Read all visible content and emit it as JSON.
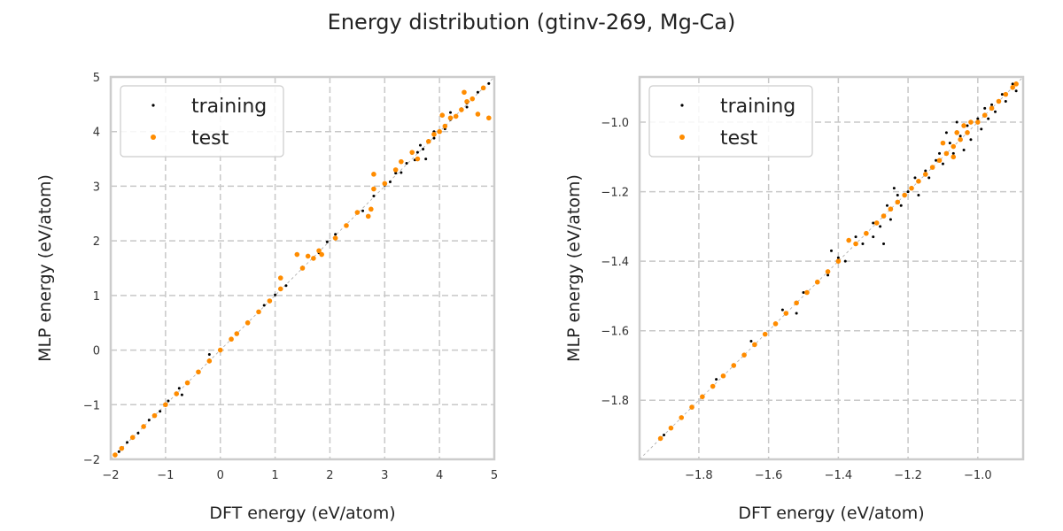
{
  "figure_title": "Energy distribution (gtinv-269, Mg-Ca)",
  "colors": {
    "training": "#000000",
    "test": "#ff8c00",
    "grid": "#c8c8c8",
    "frame": "#cccccc",
    "diagonal": "#aaaaaa"
  },
  "chart_data": [
    {
      "type": "scatter",
      "title": "",
      "xlabel": "DFT energy (eV/atom)",
      "ylabel": "MLP energy (eV/atom)",
      "xlim": [
        -2.0,
        5.0
      ],
      "ylim": [
        -2.0,
        5.0
      ],
      "xticks": [
        -2,
        -1,
        0,
        1,
        2,
        3,
        4,
        5
      ],
      "yticks": [
        -2,
        -1,
        0,
        1,
        2,
        3,
        4,
        5
      ],
      "xtick_labels": [
        "−2",
        "−1",
        "0",
        "1",
        "2",
        "3",
        "4",
        "5"
      ],
      "ytick_labels": [
        "−2",
        "−1",
        "0",
        "1",
        "2",
        "3",
        "4",
        "5"
      ],
      "grid": true,
      "legend": {
        "position": "top-left",
        "entries": [
          "training",
          "test"
        ]
      },
      "series": [
        {
          "name": "training",
          "color": "#000000",
          "points": [
            [
              -1.92,
              -1.91
            ],
            [
              -1.85,
              -1.86
            ],
            [
              -1.7,
              -1.69
            ],
            [
              -1.5,
              -1.52
            ],
            [
              -1.3,
              -1.28
            ],
            [
              -1.1,
              -1.12
            ],
            [
              -0.95,
              -0.93
            ],
            [
              -0.8,
              -0.82
            ],
            [
              -0.75,
              -0.7
            ],
            [
              -0.7,
              -0.82
            ],
            [
              -0.6,
              -0.59
            ],
            [
              -0.4,
              -0.42
            ],
            [
              -0.2,
              -0.18
            ],
            [
              0.0,
              0.01
            ],
            [
              -0.2,
              -0.08
            ],
            [
              0.2,
              0.22
            ],
            [
              0.5,
              0.48
            ],
            [
              0.8,
              0.82
            ],
            [
              1.0,
              1.01
            ],
            [
              1.2,
              1.18
            ],
            [
              1.5,
              1.52
            ],
            [
              1.8,
              1.78
            ],
            [
              1.95,
              1.98
            ],
            [
              2.1,
              2.12
            ],
            [
              2.3,
              2.29
            ],
            [
              2.5,
              2.52
            ],
            [
              2.6,
              2.55
            ],
            [
              2.8,
              2.82
            ],
            [
              3.0,
              3.02
            ],
            [
              3.1,
              3.08
            ],
            [
              3.2,
              3.24
            ],
            [
              3.3,
              3.25
            ],
            [
              3.4,
              3.42
            ],
            [
              3.5,
              3.6
            ],
            [
              3.55,
              3.48
            ],
            [
              3.6,
              3.62
            ],
            [
              3.7,
              3.68
            ],
            [
              3.75,
              3.5
            ],
            [
              3.8,
              3.84
            ],
            [
              3.9,
              3.88
            ],
            [
              4.0,
              4.02
            ],
            [
              4.1,
              4.05
            ],
            [
              4.2,
              4.22
            ],
            [
              4.3,
              4.28
            ],
            [
              4.4,
              4.42
            ],
            [
              4.5,
              4.52
            ],
            [
              4.6,
              4.6
            ],
            [
              4.7,
              4.72
            ],
            [
              4.8,
              4.8
            ],
            [
              4.9,
              4.88
            ],
            [
              4.5,
              4.45
            ],
            [
              4.2,
              4.35
            ],
            [
              3.9,
              4.0
            ],
            [
              3.65,
              3.75
            ]
          ]
        },
        {
          "name": "test",
          "color": "#ff8c00",
          "points": [
            [
              -1.92,
              -1.92
            ],
            [
              -1.8,
              -1.8
            ],
            [
              -1.6,
              -1.6
            ],
            [
              -1.4,
              -1.4
            ],
            [
              -1.2,
              -1.2
            ],
            [
              -1.0,
              -1.0
            ],
            [
              -0.8,
              -0.8
            ],
            [
              -0.6,
              -0.6
            ],
            [
              -0.4,
              -0.4
            ],
            [
              -0.2,
              -0.2
            ],
            [
              0.0,
              0.0
            ],
            [
              0.2,
              0.2
            ],
            [
              0.3,
              0.3
            ],
            [
              0.5,
              0.5
            ],
            [
              0.7,
              0.7
            ],
            [
              0.9,
              0.9
            ],
            [
              1.1,
              1.12
            ],
            [
              1.1,
              1.32
            ],
            [
              1.4,
              1.75
            ],
            [
              1.5,
              1.5
            ],
            [
              1.6,
              1.72
            ],
            [
              1.7,
              1.68
            ],
            [
              1.8,
              1.82
            ],
            [
              1.85,
              1.75
            ],
            [
              2.1,
              2.05
            ],
            [
              2.3,
              2.28
            ],
            [
              2.5,
              2.52
            ],
            [
              2.7,
              2.45
            ],
            [
              2.75,
              2.58
            ],
            [
              2.8,
              2.95
            ],
            [
              2.8,
              3.22
            ],
            [
              3.0,
              3.05
            ],
            [
              3.2,
              3.3
            ],
            [
              3.3,
              3.45
            ],
            [
              3.5,
              3.62
            ],
            [
              3.6,
              3.5
            ],
            [
              3.8,
              3.82
            ],
            [
              3.9,
              3.95
            ],
            [
              4.0,
              4.0
            ],
            [
              4.1,
              4.1
            ],
            [
              4.2,
              4.25
            ],
            [
              4.4,
              4.4
            ],
            [
              4.45,
              4.72
            ],
            [
              4.5,
              4.55
            ],
            [
              4.6,
              4.6
            ],
            [
              4.7,
              4.32
            ],
            [
              4.8,
              4.8
            ],
            [
              4.9,
              4.25
            ],
            [
              4.05,
              4.3
            ],
            [
              4.3,
              4.28
            ]
          ]
        }
      ]
    },
    {
      "type": "scatter",
      "title": "",
      "xlabel": "DFT energy (eV/atom)",
      "ylabel": "MLP energy (eV/atom)",
      "xlim": [
        -1.97,
        -0.87
      ],
      "ylim": [
        -1.97,
        -0.87
      ],
      "xticks": [
        -1.8,
        -1.6,
        -1.4,
        -1.2,
        -1.0
      ],
      "yticks": [
        -1.8,
        -1.6,
        -1.4,
        -1.2,
        -1.0
      ],
      "xtick_labels": [
        "−1.8",
        "−1.6",
        "−1.4",
        "−1.2",
        "−1.0"
      ],
      "ytick_labels": [
        "−1.8",
        "−1.6",
        "−1.4",
        "−1.2",
        "−1.0"
      ],
      "grid": true,
      "legend": {
        "position": "top-left",
        "entries": [
          "training",
          "test"
        ]
      },
      "series": [
        {
          "name": "training",
          "color": "#000000",
          "points": [
            [
              -1.9,
              -1.9
            ],
            [
              -1.75,
              -1.74
            ],
            [
              -1.65,
              -1.63
            ],
            [
              -1.58,
              -1.58
            ],
            [
              -1.56,
              -1.54
            ],
            [
              -1.52,
              -1.55
            ],
            [
              -1.5,
              -1.49
            ],
            [
              -1.46,
              -1.46
            ],
            [
              -1.43,
              -1.44
            ],
            [
              -1.4,
              -1.39
            ],
            [
              -1.38,
              -1.4
            ],
            [
              -1.35,
              -1.33
            ],
            [
              -1.33,
              -1.35
            ],
            [
              -1.3,
              -1.29
            ],
            [
              -1.28,
              -1.3
            ],
            [
              -1.26,
              -1.24
            ],
            [
              -1.25,
              -1.28
            ],
            [
              -1.23,
              -1.21
            ],
            [
              -1.22,
              -1.24
            ],
            [
              -1.2,
              -1.2
            ],
            [
              -1.18,
              -1.16
            ],
            [
              -1.17,
              -1.21
            ],
            [
              -1.15,
              -1.14
            ],
            [
              -1.14,
              -1.16
            ],
            [
              -1.12,
              -1.11
            ],
            [
              -1.11,
              -1.09
            ],
            [
              -1.1,
              -1.12
            ],
            [
              -1.08,
              -1.06
            ],
            [
              -1.07,
              -1.09
            ],
            [
              -1.05,
              -1.04
            ],
            [
              -1.04,
              -1.08
            ],
            [
              -1.03,
              -1.01
            ],
            [
              -1.02,
              -1.05
            ],
            [
              -1.0,
              -0.99
            ],
            [
              -0.99,
              -1.02
            ],
            [
              -0.98,
              -0.96
            ],
            [
              -0.97,
              -0.99
            ],
            [
              -0.96,
              -0.95
            ],
            [
              -0.95,
              -0.97
            ],
            [
              -0.93,
              -0.92
            ],
            [
              -0.92,
              -0.94
            ],
            [
              -0.9,
              -0.89
            ],
            [
              -0.89,
              -0.91
            ],
            [
              -1.24,
              -1.19
            ],
            [
              -1.3,
              -1.33
            ],
            [
              -1.06,
              -1.0
            ],
            [
              -1.09,
              -1.03
            ],
            [
              -1.42,
              -1.37
            ],
            [
              -1.27,
              -1.35
            ]
          ]
        },
        {
          "name": "test",
          "color": "#ff8c00",
          "points": [
            [
              -1.91,
              -1.91
            ],
            [
              -1.88,
              -1.88
            ],
            [
              -1.85,
              -1.85
            ],
            [
              -1.82,
              -1.82
            ],
            [
              -1.79,
              -1.79
            ],
            [
              -1.76,
              -1.76
            ],
            [
              -1.73,
              -1.73
            ],
            [
              -1.7,
              -1.7
            ],
            [
              -1.67,
              -1.67
            ],
            [
              -1.64,
              -1.64
            ],
            [
              -1.61,
              -1.61
            ],
            [
              -1.58,
              -1.58
            ],
            [
              -1.55,
              -1.55
            ],
            [
              -1.52,
              -1.52
            ],
            [
              -1.49,
              -1.49
            ],
            [
              -1.46,
              -1.46
            ],
            [
              -1.43,
              -1.43
            ],
            [
              -1.4,
              -1.4
            ],
            [
              -1.37,
              -1.34
            ],
            [
              -1.35,
              -1.35
            ],
            [
              -1.32,
              -1.32
            ],
            [
              -1.29,
              -1.29
            ],
            [
              -1.27,
              -1.27
            ],
            [
              -1.25,
              -1.25
            ],
            [
              -1.23,
              -1.23
            ],
            [
              -1.21,
              -1.21
            ],
            [
              -1.19,
              -1.19
            ],
            [
              -1.17,
              -1.17
            ],
            [
              -1.15,
              -1.15
            ],
            [
              -1.13,
              -1.13
            ],
            [
              -1.11,
              -1.11
            ],
            [
              -1.09,
              -1.09
            ],
            [
              -1.07,
              -1.07
            ],
            [
              -1.05,
              -1.05
            ],
            [
              -1.04,
              -1.01
            ],
            [
              -1.03,
              -1.03
            ],
            [
              -1.02,
              -1.0
            ],
            [
              -1.0,
              -1.0
            ],
            [
              -0.98,
              -0.98
            ],
            [
              -0.96,
              -0.96
            ],
            [
              -0.94,
              -0.94
            ],
            [
              -0.92,
              -0.92
            ],
            [
              -0.9,
              -0.9
            ],
            [
              -0.89,
              -0.89
            ],
            [
              -1.06,
              -1.03
            ],
            [
              -1.1,
              -1.06
            ],
            [
              -1.07,
              -1.1
            ]
          ]
        }
      ]
    }
  ]
}
